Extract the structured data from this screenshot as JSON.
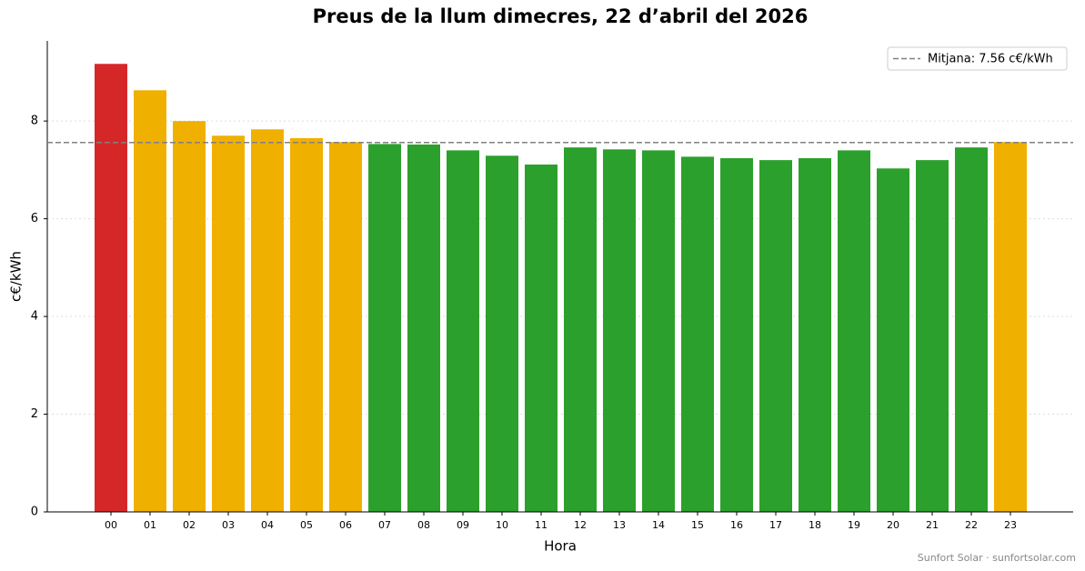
{
  "chart_data": {
    "type": "bar",
    "title": "Preus de la llum dimecres, 22 d’abril del 2026",
    "x_label": "Hora",
    "y_label": "c€/kWh",
    "categories": [
      "00",
      "01",
      "02",
      "03",
      "04",
      "05",
      "06",
      "07",
      "08",
      "09",
      "10",
      "11",
      "12",
      "13",
      "14",
      "15",
      "16",
      "17",
      "18",
      "19",
      "20",
      "21",
      "22",
      "23"
    ],
    "values": [
      9.17,
      8.63,
      8.0,
      7.7,
      7.83,
      7.65,
      7.57,
      7.53,
      7.52,
      7.4,
      7.29,
      7.11,
      7.46,
      7.42,
      7.4,
      7.27,
      7.24,
      7.2,
      7.24,
      7.4,
      7.03,
      7.2,
      7.46,
      7.57
    ],
    "colors": [
      "#d62728",
      "#f0b000",
      "#f0b000",
      "#f0b000",
      "#f0b000",
      "#f0b000",
      "#f0b000",
      "#2ca02c",
      "#2ca02c",
      "#2ca02c",
      "#2ca02c",
      "#2ca02c",
      "#2ca02c",
      "#2ca02c",
      "#2ca02c",
      "#2ca02c",
      "#2ca02c",
      "#2ca02c",
      "#2ca02c",
      "#2ca02c",
      "#2ca02c",
      "#2ca02c",
      "#2ca02c",
      "#f0b000"
    ],
    "mean_line": {
      "value": 7.56,
      "label": "Mitjana: 7.56 c€/kWh",
      "color": "#808080"
    },
    "ylim": [
      0,
      9.64
    ],
    "yticks": [
      0,
      2,
      4,
      6,
      8
    ],
    "grid": true,
    "legend_position": "upper right",
    "footer": "Sunfort Solar · sunfortsolar.com"
  }
}
